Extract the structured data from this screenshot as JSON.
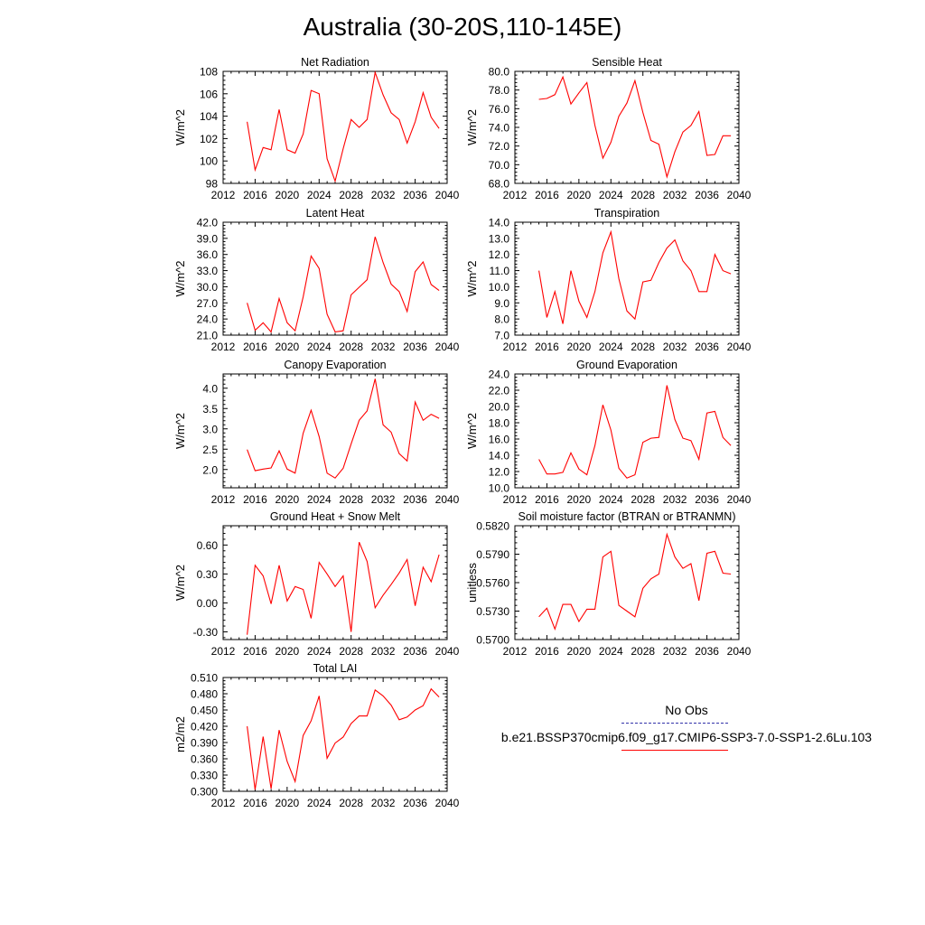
{
  "title": "Australia (30-20S,110-145E)",
  "legend": {
    "obs_label": "No Obs",
    "obs_color": "#3333aa",
    "model_label": "b.e21.BSSP370cmip6.f09_g17.CMIP6-SSP3-7.0-SSP1-2.6Lu.103",
    "model_color": "#ff0000"
  },
  "chart_data": [
    {
      "type": "line",
      "title": "Net Radiation",
      "ylabel": "W/m^2",
      "xlim": [
        2012,
        2040
      ],
      "ylim": [
        98,
        108
      ],
      "yticks": [
        "98",
        "100",
        "102",
        "104",
        "106",
        "108"
      ],
      "xticks": [
        "2012",
        "2016",
        "2020",
        "2024",
        "2028",
        "2032",
        "2036",
        "2040"
      ],
      "x": [
        2015,
        2016,
        2017,
        2018,
        2019,
        2020,
        2021,
        2022,
        2023,
        2024,
        2025,
        2026,
        2027,
        2028,
        2029,
        2030,
        2031,
        2032,
        2033,
        2034,
        2035,
        2036,
        2037,
        2038,
        2039
      ],
      "series": [
        {
          "values": [
            103.5,
            99.2,
            101.2,
            101.0,
            104.6,
            101.0,
            100.7,
            102.4,
            106.3,
            106.0,
            100.2,
            98.2,
            101.1,
            103.7,
            103.0,
            103.7,
            107.9,
            105.9,
            104.3,
            103.7,
            101.6,
            103.5,
            106.1,
            103.9,
            102.9
          ]
        }
      ]
    },
    {
      "type": "line",
      "title": "Sensible Heat",
      "ylabel": "W/m^2",
      "xlim": [
        2012,
        2040
      ],
      "ylim": [
        68,
        80
      ],
      "yticks": [
        "68.0",
        "70.0",
        "72.0",
        "74.0",
        "76.0",
        "78.0",
        "80.0"
      ],
      "xticks": [
        "2012",
        "2016",
        "2020",
        "2024",
        "2028",
        "2032",
        "2036",
        "2040"
      ],
      "x": [
        2015,
        2016,
        2017,
        2018,
        2019,
        2020,
        2021,
        2022,
        2023,
        2024,
        2025,
        2026,
        2027,
        2028,
        2029,
        2030,
        2031,
        2032,
        2033,
        2034,
        2035,
        2036,
        2037,
        2038,
        2039
      ],
      "series": [
        {
          "values": [
            77.0,
            77.1,
            77.5,
            79.4,
            76.5,
            77.7,
            78.8,
            74.2,
            70.7,
            72.4,
            75.2,
            76.6,
            79.0,
            75.6,
            72.6,
            72.2,
            68.7,
            71.4,
            73.5,
            74.2,
            75.7,
            71.0,
            71.1,
            73.1,
            73.1
          ]
        }
      ]
    },
    {
      "type": "line",
      "title": "Latent Heat",
      "ylabel": "W/m^2",
      "xlim": [
        2012,
        2040
      ],
      "ylim": [
        21,
        42
      ],
      "yticks": [
        "21.0",
        "24.0",
        "27.0",
        "30.0",
        "33.0",
        "36.0",
        "39.0",
        "42.0"
      ],
      "xticks": [
        "2012",
        "2016",
        "2020",
        "2024",
        "2028",
        "2032",
        "2036",
        "2040"
      ],
      "x": [
        2015,
        2016,
        2017,
        2018,
        2019,
        2020,
        2021,
        2022,
        2023,
        2024,
        2025,
        2026,
        2027,
        2028,
        2029,
        2030,
        2031,
        2032,
        2033,
        2034,
        2035,
        2036,
        2037,
        2038,
        2039
      ],
      "series": [
        {
          "values": [
            27.0,
            21.9,
            23.3,
            21.6,
            27.8,
            23.3,
            21.8,
            28.1,
            35.7,
            33.4,
            24.9,
            21.6,
            21.8,
            28.5,
            29.9,
            31.3,
            39.3,
            34.5,
            30.5,
            29.1,
            25.4,
            32.8,
            34.6,
            30.4,
            29.3
          ]
        }
      ]
    },
    {
      "type": "line",
      "title": "Transpiration",
      "ylabel": "W/m^2",
      "xlim": [
        2012,
        2040
      ],
      "ylim": [
        7,
        14
      ],
      "yticks": [
        "7.0",
        "8.0",
        "9.0",
        "10.0",
        "11.0",
        "12.0",
        "13.0",
        "14.0"
      ],
      "xticks": [
        "2012",
        "2016",
        "2020",
        "2024",
        "2028",
        "2032",
        "2036",
        "2040"
      ],
      "x": [
        2015,
        2016,
        2017,
        2018,
        2019,
        2020,
        2021,
        2022,
        2023,
        2024,
        2025,
        2026,
        2027,
        2028,
        2029,
        2030,
        2031,
        2032,
        2033,
        2034,
        2035,
        2036,
        2037,
        2038,
        2039
      ],
      "series": [
        {
          "values": [
            11.0,
            8.1,
            9.7,
            7.7,
            11.0,
            9.1,
            8.1,
            9.7,
            12.1,
            13.4,
            10.5,
            8.5,
            8.0,
            10.3,
            10.4,
            11.5,
            12.4,
            12.9,
            11.6,
            11.0,
            9.7,
            9.7,
            12.0,
            11.0,
            10.8
          ]
        }
      ]
    },
    {
      "type": "line",
      "title": "Canopy Evaporation",
      "ylabel": "W/m^2",
      "xlim": [
        2012,
        2040
      ],
      "ylim": [
        1.55,
        4.35
      ],
      "yticks": [
        "2.0",
        "2.5",
        "3.0",
        "3.5",
        "4.0"
      ],
      "ytick_values": [
        2.0,
        2.5,
        3.0,
        3.5,
        4.0
      ],
      "xticks": [
        "2012",
        "2016",
        "2020",
        "2024",
        "2028",
        "2032",
        "2036",
        "2040"
      ],
      "x": [
        2015,
        2016,
        2017,
        2018,
        2019,
        2020,
        2021,
        2022,
        2023,
        2024,
        2025,
        2026,
        2027,
        2028,
        2029,
        2030,
        2031,
        2032,
        2033,
        2034,
        2035,
        2036,
        2037,
        2038,
        2039
      ],
      "series": [
        {
          "values": [
            2.49,
            1.97,
            2.01,
            2.04,
            2.46,
            2.01,
            1.91,
            2.89,
            3.46,
            2.81,
            1.91,
            1.79,
            2.03,
            2.63,
            3.21,
            3.44,
            4.23,
            3.1,
            2.92,
            2.39,
            2.21,
            3.66,
            3.21,
            3.36,
            3.26
          ]
        }
      ]
    },
    {
      "type": "line",
      "title": "Ground Evaporation",
      "ylabel": "W/m^2",
      "xlim": [
        2012,
        2040
      ],
      "ylim": [
        10,
        24
      ],
      "yticks": [
        "10.0",
        "12.0",
        "14.0",
        "16.0",
        "18.0",
        "20.0",
        "22.0",
        "24.0"
      ],
      "xticks": [
        "2012",
        "2016",
        "2020",
        "2024",
        "2028",
        "2032",
        "2036",
        "2040"
      ],
      "x": [
        2015,
        2016,
        2017,
        2018,
        2019,
        2020,
        2021,
        2022,
        2023,
        2024,
        2025,
        2026,
        2027,
        2028,
        2029,
        2030,
        2031,
        2032,
        2033,
        2034,
        2035,
        2036,
        2037,
        2038,
        2039
      ],
      "series": [
        {
          "values": [
            13.5,
            11.7,
            11.7,
            11.9,
            14.3,
            12.3,
            11.6,
            15.2,
            20.2,
            17.1,
            12.4,
            11.2,
            11.6,
            15.6,
            16.1,
            16.2,
            22.6,
            18.4,
            16.1,
            15.8,
            13.5,
            19.2,
            19.4,
            16.2,
            15.2
          ]
        }
      ]
    },
    {
      "type": "line",
      "title": "Ground Heat + Snow Melt",
      "ylabel": "W/m^2",
      "xlim": [
        2012,
        2040
      ],
      "ylim": [
        -0.38,
        0.8
      ],
      "yticks": [
        "-0.30",
        "0.00",
        "0.30",
        "0.60"
      ],
      "ytick_values": [
        -0.3,
        0.0,
        0.3,
        0.6
      ],
      "xticks": [
        "2012",
        "2016",
        "2020",
        "2024",
        "2028",
        "2032",
        "2036",
        "2040"
      ],
      "x": [
        2015,
        2016,
        2017,
        2018,
        2019,
        2020,
        2021,
        2022,
        2023,
        2024,
        2025,
        2026,
        2027,
        2028,
        2029,
        2030,
        2031,
        2032,
        2033,
        2034,
        2035,
        2036,
        2037,
        2038,
        2039
      ],
      "series": [
        {
          "values": [
            -0.33,
            0.39,
            0.28,
            -0.01,
            0.39,
            0.02,
            0.17,
            0.14,
            -0.16,
            0.42,
            0.3,
            0.17,
            0.28,
            -0.3,
            0.63,
            0.43,
            -0.05,
            0.08,
            0.19,
            0.31,
            0.45,
            -0.03,
            0.37,
            0.22,
            0.5
          ]
        }
      ]
    },
    {
      "type": "line",
      "title": "Soil moisture factor (BTRAN or BTRANMN)",
      "ylabel": "unitless",
      "xlim": [
        2012,
        2040
      ],
      "ylim": [
        0.57,
        0.582
      ],
      "yticks": [
        "0.5700",
        "0.5730",
        "0.5760",
        "0.5790",
        "0.5820"
      ],
      "xticks": [
        "2012",
        "2016",
        "2020",
        "2024",
        "2028",
        "2032",
        "2036",
        "2040"
      ],
      "x": [
        2015,
        2016,
        2017,
        2018,
        2019,
        2020,
        2021,
        2022,
        2023,
        2024,
        2025,
        2026,
        2027,
        2028,
        2029,
        2030,
        2031,
        2032,
        2033,
        2034,
        2035,
        2036,
        2037,
        2038,
        2039
      ],
      "series": [
        {
          "values": [
            0.5724,
            0.5733,
            0.5711,
            0.5737,
            0.5737,
            0.5719,
            0.5732,
            0.5732,
            0.5787,
            0.5793,
            0.5736,
            0.573,
            0.5724,
            0.5754,
            0.5764,
            0.5769,
            0.5811,
            0.5787,
            0.5775,
            0.578,
            0.5741,
            0.5791,
            0.5793,
            0.577,
            0.5769
          ]
        }
      ]
    },
    {
      "type": "line",
      "title": "Total LAI",
      "ylabel": "m2/m2",
      "xlim": [
        2012,
        2040
      ],
      "ylim": [
        0.3,
        0.51
      ],
      "yticks": [
        "0.300",
        "0.330",
        "0.360",
        "0.390",
        "0.420",
        "0.450",
        "0.480",
        "0.510"
      ],
      "ytick_values": [
        0.3,
        0.33,
        0.36,
        0.39,
        0.42,
        0.45,
        0.48,
        0.51
      ],
      "xticks": [
        "2012",
        "2016",
        "2020",
        "2024",
        "2028",
        "2032",
        "2036",
        "2040"
      ],
      "x": [
        2015,
        2016,
        2017,
        2018,
        2019,
        2020,
        2021,
        2022,
        2023,
        2024,
        2025,
        2026,
        2027,
        2028,
        2029,
        2030,
        2031,
        2032,
        2033,
        2034,
        2035,
        2036,
        2037,
        2038,
        2039
      ],
      "series": [
        {
          "values": [
            0.42,
            0.303,
            0.401,
            0.305,
            0.413,
            0.355,
            0.318,
            0.403,
            0.43,
            0.476,
            0.361,
            0.389,
            0.4,
            0.425,
            0.439,
            0.439,
            0.487,
            0.476,
            0.459,
            0.432,
            0.437,
            0.45,
            0.458,
            0.489,
            0.474
          ]
        }
      ]
    }
  ]
}
